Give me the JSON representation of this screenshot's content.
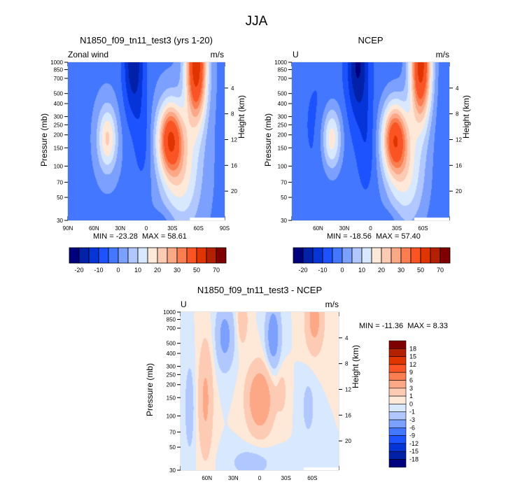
{
  "page_title": "JJA",
  "chart_data": [
    {
      "type": "heatmap",
      "id": "model",
      "title": "N1850_f09_tn11_test3 (yrs 1-20)",
      "left_label": "Zonal wind",
      "right_label": "m/s",
      "ylabel": "Pressure (mb)",
      "y2label": "Height (km)",
      "x_ticks": [
        "90N",
        "60N",
        "30N",
        "0",
        "30S",
        "60S",
        "90S"
      ],
      "x_range": [
        90,
        -90
      ],
      "y_ticks": [
        30,
        50,
        70,
        100,
        150,
        200,
        250,
        300,
        400,
        500,
        700,
        850,
        1000
      ],
      "y_range": [
        1000,
        30
      ],
      "y2_ticks": [
        4,
        8,
        12,
        16,
        20
      ],
      "min_label": "MIN = -23.28",
      "max_label": "MAX =  58.61",
      "min": -23.28,
      "max": 58.61,
      "colorbar_labels": [
        "-20",
        "-10",
        "0",
        "10",
        "20",
        "30",
        "50",
        "70"
      ],
      "levels": [
        -25,
        -20,
        -15,
        -10,
        -5,
        0,
        5,
        10,
        15,
        20,
        25,
        30,
        40,
        50,
        60,
        70
      ]
    },
    {
      "type": "heatmap",
      "id": "ncep",
      "title": "NCEP",
      "left_label": "U",
      "right_label": "m/s",
      "ylabel": "Pressure (mb)",
      "y2label": "Height (km)",
      "x_ticks": [
        "60N",
        "30N",
        "0",
        "30S",
        "60S"
      ],
      "x_range": [
        90,
        -90
      ],
      "y_ticks": [
        30,
        50,
        70,
        100,
        150,
        200,
        250,
        300,
        400,
        500,
        700,
        850,
        1000
      ],
      "y_range": [
        1000,
        30
      ],
      "y2_ticks": [
        4,
        8,
        12,
        16,
        20
      ],
      "min_label": "MIN = -18.56",
      "max_label": "MAX =  57.40",
      "min": -18.56,
      "max": 57.4,
      "colorbar_labels": [
        "-20",
        "-10",
        "0",
        "10",
        "20",
        "30",
        "50",
        "70"
      ],
      "levels": [
        -25,
        -20,
        -15,
        -10,
        -5,
        0,
        5,
        10,
        15,
        20,
        25,
        30,
        40,
        50,
        60,
        70
      ]
    },
    {
      "type": "heatmap",
      "id": "diff",
      "title": "N1850_f09_tn11_test3 - NCEP",
      "left_label": "U",
      "right_label": "m/s",
      "ylabel": "Pressure (mb)",
      "y2label": "Height (km)",
      "x_ticks": [
        "60N",
        "30N",
        "0",
        "30S",
        "60S"
      ],
      "x_range": [
        90,
        -90
      ],
      "y_ticks": [
        30,
        50,
        70,
        100,
        150,
        200,
        250,
        300,
        400,
        500,
        700,
        850,
        1000
      ],
      "y_range": [
        1000,
        30
      ],
      "y2_ticks": [
        4,
        8,
        12,
        16,
        20
      ],
      "min_label": "MIN = -11.36",
      "max_label": "MAX =   8.33",
      "min": -11.36,
      "max": 8.33,
      "colorbar_labels": [
        "18",
        "15",
        "12",
        "9",
        "6",
        "3",
        "1",
        "0",
        "-1",
        "-3",
        "-6",
        "-9",
        "-12",
        "-15",
        "-18"
      ],
      "levels": [
        -18,
        -15,
        -12,
        -9,
        -6,
        -3,
        -1,
        0,
        1,
        3,
        6,
        9,
        12,
        15,
        18
      ]
    }
  ],
  "colors": {
    "abs_palette": [
      "#00007f",
      "#0021a8",
      "#0534d9",
      "#1c52ff",
      "#4477ff",
      "#7ba0ff",
      "#b0c8ff",
      "#d8e8ff",
      "#fee8d8",
      "#fdcbb3",
      "#fca887",
      "#fb7e50",
      "#fa5424",
      "#e03500",
      "#b42100",
      "#7f0000"
    ],
    "diff_palette": [
      "#00007f",
      "#0021a8",
      "#0534d9",
      "#1c52ff",
      "#4477ff",
      "#7ba0ff",
      "#b0c8ff",
      "#d8e8ff",
      "#fee8d8",
      "#fdcbb3",
      "#fca887",
      "#fb7e50",
      "#fa5424",
      "#e03500",
      "#b42100",
      "#7f0000"
    ]
  }
}
